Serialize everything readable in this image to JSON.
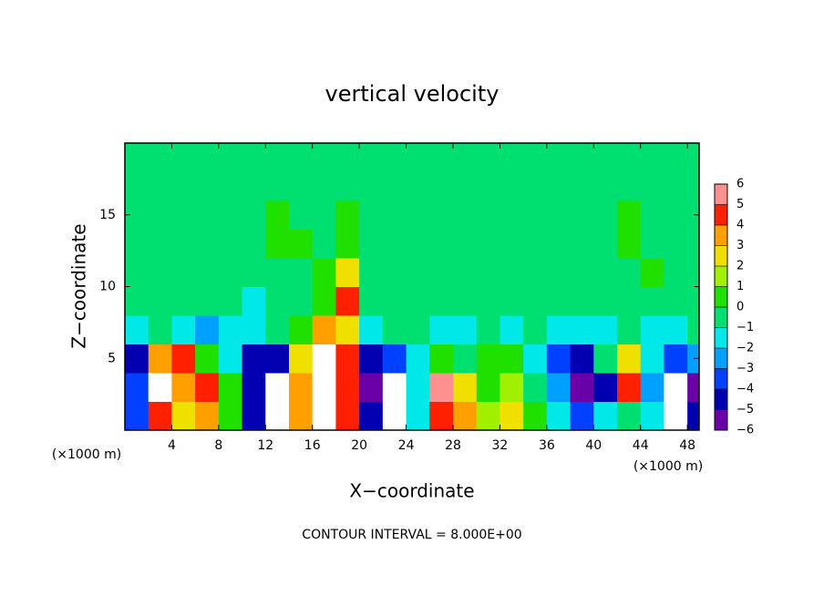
{
  "chart_data": {
    "type": "heatmap",
    "title": "vertical velocity",
    "xlabel": "X−coordinate",
    "ylabel": "Z−coordinate",
    "x_unit_left": "(×1000 m)",
    "x_unit_right": "(×1000 m)",
    "footer": "CONTOUR INTERVAL = 8.000E+00",
    "xlim": [
      0,
      49
    ],
    "ylim": [
      0,
      20
    ],
    "xticks": [
      4,
      8,
      12,
      16,
      20,
      24,
      28,
      32,
      36,
      40,
      44,
      48
    ],
    "yticks": [
      5,
      10,
      15
    ],
    "x": [
      1,
      3,
      5,
      7,
      9,
      11,
      13,
      15,
      17,
      19,
      21,
      23,
      25,
      27,
      29,
      31,
      33,
      35,
      37,
      39,
      41,
      43,
      45,
      47,
      49
    ],
    "z": [
      1,
      3,
      5,
      7,
      9,
      11,
      13,
      15,
      17,
      19
    ],
    "values": [
      [
        -3,
        5,
        3,
        4,
        1,
        -4,
        -8,
        4,
        8,
        5,
        -4,
        -8,
        -1,
        5,
        4,
        2,
        3,
        0.5,
        -1,
        -3,
        -1,
        0,
        -1,
        -8,
        -4
      ],
      [
        -3,
        7,
        4,
        5,
        1,
        -4,
        -7,
        4,
        8,
        5,
        -5,
        -7,
        -1,
        6,
        3,
        1,
        2,
        0,
        -2,
        -6,
        -4,
        5,
        -2,
        -7,
        -5
      ],
      [
        -4,
        4,
        5,
        1,
        -1,
        -4,
        -4,
        3,
        7,
        5,
        -4,
        -3,
        -1,
        1,
        0,
        1,
        1,
        -1,
        -3,
        -4,
        0,
        3,
        -1,
        -3,
        -2
      ],
      [
        -1,
        0,
        -1,
        -2,
        -1,
        -1,
        0,
        1,
        4,
        3,
        -1,
        0,
        0,
        -1,
        -1,
        0,
        -1,
        0,
        -1,
        -1,
        -1,
        0,
        -1,
        -1,
        0
      ],
      [
        0,
        -0.5,
        0,
        0,
        0,
        -1,
        -0.5,
        0,
        1,
        5,
        0,
        0,
        0,
        -0.5,
        0,
        0,
        0,
        0,
        -0.5,
        0,
        0,
        0,
        0,
        0,
        0
      ],
      [
        0,
        0,
        0,
        0,
        0,
        0,
        0,
        0,
        0.5,
        3,
        0,
        0,
        0,
        0,
        0,
        0,
        0,
        0,
        0,
        0,
        0,
        0,
        0.5,
        0,
        0
      ],
      [
        0,
        0,
        0,
        0,
        0,
        0,
        0.5,
        0.5,
        0,
        1,
        0,
        0,
        0,
        0,
        0,
        0,
        0,
        0,
        0,
        0,
        0,
        0.5,
        0,
        0,
        0
      ],
      [
        0,
        0,
        0,
        0,
        0,
        0,
        0.5,
        0,
        0,
        0.5,
        0,
        0,
        0,
        0,
        0,
        0,
        0,
        0,
        0,
        0,
        0,
        0.5,
        0,
        0,
        0
      ],
      [
        0,
        0,
        0,
        0,
        0,
        0,
        0,
        0,
        0,
        0,
        0,
        0,
        0,
        0,
        0,
        0,
        0,
        0,
        0,
        0,
        0,
        0,
        0,
        0,
        0
      ],
      [
        0,
        0,
        0,
        0,
        0,
        0,
        0,
        0,
        0,
        0,
        0,
        0,
        0,
        0,
        0,
        0,
        0,
        0,
        0,
        0,
        0,
        0,
        0,
        0,
        0
      ]
    ],
    "out_of_range_color": "#ffffff",
    "colorbar": {
      "ticks": [
        {
          "value": -6,
          "label": "−6"
        },
        {
          "value": -5,
          "label": "−5"
        },
        {
          "value": -4,
          "label": "−4"
        },
        {
          "value": -3,
          "label": "−3"
        },
        {
          "value": -2,
          "label": "−2"
        },
        {
          "value": -1,
          "label": "−1"
        },
        0,
        1,
        2,
        3,
        4,
        5,
        6
      ],
      "colors": [
        "#6a00a8",
        "#0000b0",
        "#0040ff",
        "#00a0ff",
        "#00e8e8",
        "#00e070",
        "#20e000",
        "#a0f000",
        "#f0e000",
        "#ffa000",
        "#ff2000",
        "#ff9090"
      ]
    }
  }
}
